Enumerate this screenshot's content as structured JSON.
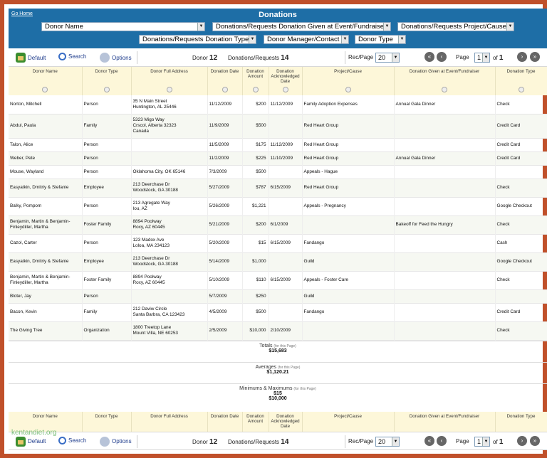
{
  "header": {
    "home_link": "Go Home",
    "title": "Donations",
    "dropdowns_row1": [
      "Donor Name",
      "Donations/Requests Donation Given at Event/Fundraiser",
      "Donations/Requests Project/Cause"
    ],
    "dropdowns_row2": [
      "Donations/Requests Donation Type",
      "Donor Manager/Contact",
      "Donor Type"
    ]
  },
  "toolbar": {
    "default_label": "Default",
    "search_label": "Search",
    "options_label": "Options",
    "donor_label": "Donor",
    "donor_count": "12",
    "requests_label": "Donations/Requests",
    "requests_count": "14",
    "recpage_label": "Rec/Page",
    "recpage_value": "20",
    "page_label": "Page",
    "page_value": "1",
    "of_label": "of",
    "page_total": "1"
  },
  "columns": [
    "Donor Name",
    "Donor Type",
    "Donor Full Address",
    "Donation Date",
    "Donation Amount",
    "Donation Acknowledged Date",
    "Project/Cause",
    "Donation Given at Event/Fundraiser",
    "Donation Type"
  ],
  "rows": [
    {
      "name": "Norton, Mitchell",
      "type": "Person",
      "address": "35 N Main Street\nHuntington, AL 25446",
      "date": "11/12/2009",
      "amount": "$200",
      "ack": "11/12/2009",
      "project": "Family Adoption Expenses",
      "event": "Annual Gala Dinner",
      "dtype": "Check"
    },
    {
      "name": "Abdul, Paula",
      "type": "Family",
      "address": "5323 Migo Way\nCrscol, Alberta 32323\nCanada",
      "date": "11/9/2009",
      "amount": "$500",
      "ack": "",
      "project": "Red Heart Group",
      "event": "",
      "dtype": "Credit Card"
    },
    {
      "name": "Talon, Alice",
      "type": "Person",
      "address": "",
      "date": "11/5/2009",
      "amount": "$175",
      "ack": "11/12/2009",
      "project": "Red Heart Group",
      "event": "",
      "dtype": "Credit Card"
    },
    {
      "name": "Weber, Pete",
      "type": "Person",
      "address": "",
      "date": "11/2/2009",
      "amount": "$225",
      "ack": "11/10/2009",
      "project": "Red Heart Group",
      "event": "Annual Gala Dinner",
      "dtype": "Credit Card"
    },
    {
      "name": "Mouse, Wayland",
      "type": "Person",
      "address": "Oklahoma City, OK 65146",
      "date": "7/3/2009",
      "amount": "$500",
      "ack": "",
      "project": "Appeals - Hague",
      "event": "",
      "dtype": ""
    },
    {
      "name": "Easyatkin, Dmitriy & Stefanie",
      "type": "Employee",
      "address": "213 Deerchase Dr\nWoodstock, GA 30188",
      "date": "5/27/2009",
      "amount": "$787",
      "ack": "6/15/2009",
      "project": "Red Heart Group",
      "event": "",
      "dtype": "Check"
    },
    {
      "name": "Balky, Pompom",
      "type": "Person",
      "address": "213 Agregate Way\nIou, AZ",
      "date": "5/26/2009",
      "amount": "$1,221",
      "ack": "",
      "project": "Appeals - Pregnancy",
      "event": "",
      "dtype": "Google Checkout"
    },
    {
      "name": "Benjamin, Martin & Benjamin-\nFinleydiller, Martha",
      "type": "Foster Family",
      "address": "8894 Poolway\nRoxy, AZ 60445",
      "date": "5/21/2009",
      "amount": "$200",
      "ack": "6/1/2009",
      "project": "",
      "event": "Bakeoff for Feed the Hungry",
      "dtype": "Check"
    },
    {
      "name": "Cazol, Carter",
      "type": "Person",
      "address": "123 Madox Ave\nLoloa, MA 234123",
      "date": "5/20/2009",
      "amount": "$15",
      "ack": "6/15/2009",
      "project": "Fandango",
      "event": "",
      "dtype": "Cash"
    },
    {
      "name": "Easyatkin, Dmitriy & Stefanie",
      "type": "Employee",
      "address": "213 Deerchase Dr\nWoodstock, GA 30188",
      "date": "5/14/2009",
      "amount": "$1,000",
      "ack": "",
      "project": "Guild",
      "event": "",
      "dtype": "Google Checkout"
    },
    {
      "name": "Benjamin, Martin & Benjamin-\nFinleydiller, Martha",
      "type": "Foster Family",
      "address": "8894 Poolway\nRoxy, AZ 60445",
      "date": "5/10/2009",
      "amount": "$110",
      "ack": "6/15/2009",
      "project": "Appeals - Foster Care",
      "event": "",
      "dtype": "Check"
    },
    {
      "name": "Bloter, Jay",
      "type": "Person",
      "address": "",
      "date": "5/7/2009",
      "amount": "$250",
      "ack": "",
      "project": "Guild",
      "event": "",
      "dtype": ""
    },
    {
      "name": "Bacon, Kevin",
      "type": "Family",
      "address": "212 Daviw Circle\nSanta Barbra, CA 123423",
      "date": "4/5/2009",
      "amount": "$500",
      "ack": "",
      "project": "Fandango",
      "event": "",
      "dtype": "Credit Card"
    },
    {
      "name": "The Giving Tree",
      "type": "Organization",
      "address": "1800 Treetop Lane\nMount Villa, NE 60253",
      "date": "2/5/2009",
      "amount": "$10,000",
      "ack": "2/10/2009",
      "project": "",
      "event": "",
      "dtype": "Check"
    }
  ],
  "totals": {
    "totals_label": "Totals",
    "page_note": "(for this Page)",
    "totals_value": "$15,683",
    "averages_label": "Averages",
    "averages_value": "$1,120.21",
    "minmax_label": "Minimums & Maximums",
    "min_value": "$15",
    "max_value": "$10,000"
  },
  "watermark": "kentandiet.org"
}
